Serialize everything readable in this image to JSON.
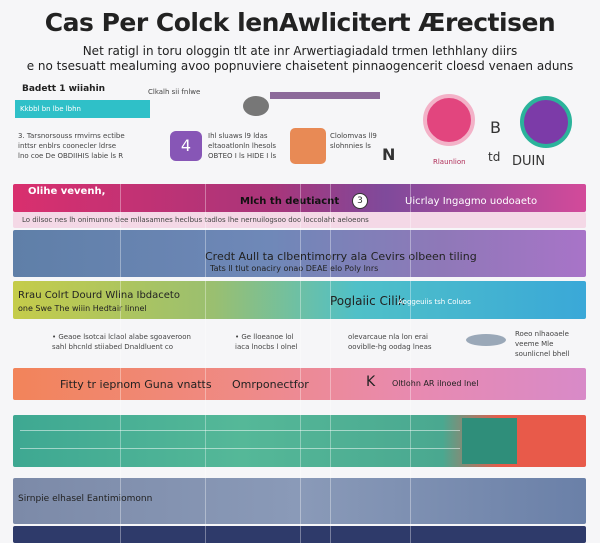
{
  "header": {
    "title": "Cas Per Colck lenAwlicitert Ærectisen",
    "subtitle": [
      "Net ratigl in toru ologgin tlt ate inr Arwertiagiadald trmen lethhlany diirs",
      "e no tsesuatt mealuming avoo popnuviere chaisetent pinnaogencerit cloesd venaen aduns"
    ]
  },
  "top": {
    "left": {
      "label": "Badett 1 wiiahin",
      "bar_text": "Kkbbl bn lbe lbhn",
      "lines": [
        "3. Tarsnorsouss rmvirns ectibe",
        "inttsr enblrs coonecler ldrse",
        "lno coe De OBDIIHIS labie ls R"
      ]
    },
    "middle": {
      "label": "Clkalh sii fnlwe",
      "badge": "4",
      "lines": [
        "Ihl sluaws l9 ldas",
        "eltaoatlonln lhesols",
        "OBTEO I ls HIDE I ls",
        "Clolomvas ll9",
        "slohnnies ls"
      ],
      "letter": "N"
    },
    "right": {
      "labels": [
        "Rlaunlion",
        "DUIN"
      ],
      "letters": [
        "B",
        "td"
      ]
    }
  },
  "rows": [
    {
      "texts": [
        "Olihe vevenh,",
        "Mlch th deutiacnt",
        "3",
        "Uicrlay Ingagmo uodoaeto",
        "Lo dilsoc nes lh onimunno tiee mllasamnes heclbus tadlos lhe nernuilogsoo doo loccolaht aeloeons"
      ]
    },
    {
      "texts": [
        "Credt Aull ta clbentimorry ala Cevirs olbeen tiling",
        "Tats ll tlut onaciry onao DEAE elo Poly lnrs"
      ]
    },
    {
      "texts": [
        "Rrau Colrt Dourd Wlina Ibdaceto",
        "one Swe The wiiin Hedtair linnel",
        "Poglaiic Cilik",
        "Aoggeuiis tsh Coluos"
      ]
    },
    {
      "texts": [
        "• Geaoe lsotcai lclaol alabe sgoaveroon",
        "sahl bhcnld stiiabed Dnaldluent co",
        "• Ge lloeanoe lol",
        "iaca lnocbs l olnel",
        "olevarcaue nla lon erai",
        "ooviblle-hg oodag lneas",
        "Roeo nlhaoaele",
        "veeme Mle",
        "sounlicnel bhell"
      ]
    },
    {
      "texts": [
        "Fitty tr iepnom Guna vnatts",
        "Omrponectfor",
        "K",
        "Oltlohn AR ilnoed lnel"
      ]
    },
    {
      "texts": [
        "Sirnpie elhasel Eantimiomonn"
      ]
    }
  ]
}
